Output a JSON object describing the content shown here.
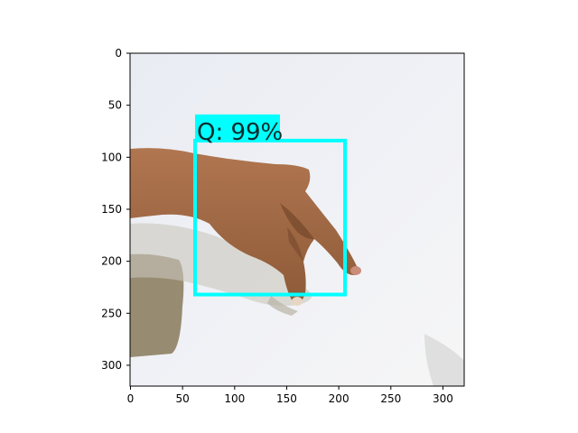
{
  "image": {
    "width_units": 320,
    "height_units": 320,
    "description_colors": {
      "background_top": "#eef0f5",
      "background_bottom": "#f4f5f7",
      "skin": "#a86c48",
      "skin_dark": "#7a4a2c",
      "shadow": "#b9b4a6",
      "dark_block": "#8b7e62"
    }
  },
  "axes": {
    "x_ticks": [
      0,
      50,
      100,
      150,
      200,
      250,
      300
    ],
    "y_ticks": [
      0,
      50,
      100,
      150,
      200,
      250,
      300
    ],
    "xlim": [
      0,
      320
    ],
    "ylim": [
      320,
      0
    ]
  },
  "detection": {
    "label": "Q: 99%",
    "box": {
      "x0": 62,
      "y0": 84,
      "x1": 206,
      "y1": 232
    },
    "color": "#00ffff"
  }
}
